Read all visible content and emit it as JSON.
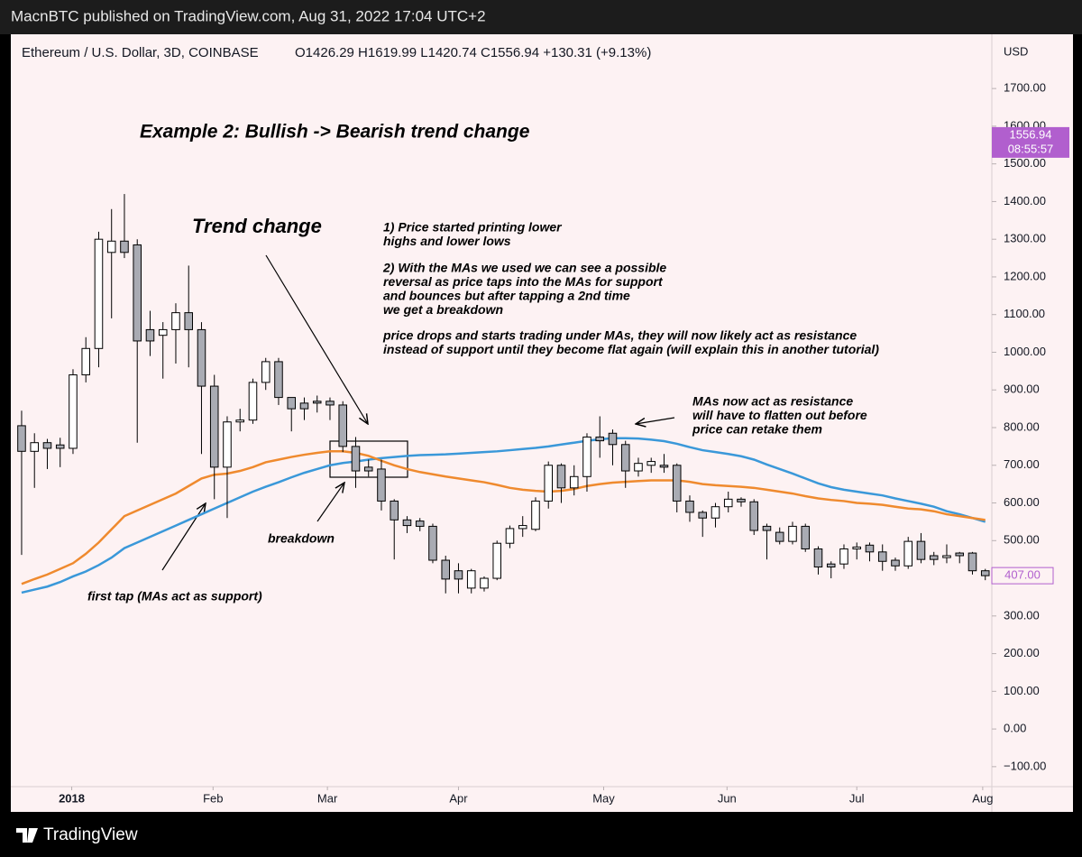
{
  "page": {
    "publisher": "MacnBTC published on TradingView.com, Aug 31, 2022 17:04 UTC+2",
    "brand": "TradingView"
  },
  "chart_data": {
    "type": "candlestick",
    "symbol": "Ethereum / U.S. Dollar, 3D, COINBASE",
    "ohlc_legend": "O1426.29 H1619.99 L1420.74 C1556.94 +130.31 (+9.13%)",
    "currency": "USD",
    "title": "Example 2: Bullish -> Bearish trend change",
    "open": [
      805,
      737,
      760,
      754,
      745,
      940,
      1010,
      1265,
      1295,
      1285,
      1060,
      1045,
      1060,
      1105,
      1060,
      910,
      695,
      815,
      820,
      920,
      975,
      880,
      865,
      870,
      870,
      860,
      750,
      695,
      690,
      605,
      555,
      552,
      538,
      448,
      420,
      374,
      374,
      400,
      493,
      532,
      530,
      605,
      700,
      640,
      670,
      775,
      785,
      755,
      685,
      700,
      700,
      700,
      605,
      575,
      560,
      590,
      610,
      603,
      538,
      522,
      498,
      538,
      478,
      438,
      438,
      478,
      488,
      470,
      448,
      433,
      498,
      460,
      455,
      467,
      467,
      420
    ],
    "high": [
      845,
      785,
      770,
      773,
      955,
      1040,
      1320,
      1380,
      1420,
      1300,
      1110,
      1080,
      1130,
      1230,
      1080,
      940,
      830,
      850,
      930,
      985,
      985,
      880,
      880,
      885,
      880,
      870,
      775,
      715,
      715,
      610,
      565,
      560,
      545,
      460,
      440,
      425,
      405,
      500,
      540,
      565,
      615,
      710,
      705,
      700,
      785,
      830,
      795,
      765,
      720,
      720,
      730,
      705,
      620,
      580,
      600,
      630,
      615,
      610,
      545,
      535,
      550,
      545,
      485,
      445,
      490,
      495,
      495,
      490,
      455,
      510,
      520,
      470,
      490,
      470,
      470,
      425
    ],
    "low": [
      462,
      640,
      690,
      695,
      730,
      920,
      960,
      1090,
      1250,
      760,
      990,
      930,
      970,
      960,
      730,
      610,
      560,
      790,
      810,
      900,
      860,
      790,
      820,
      840,
      820,
      735,
      640,
      670,
      580,
      450,
      520,
      525,
      440,
      360,
      360,
      360,
      365,
      395,
      480,
      510,
      525,
      585,
      600,
      620,
      630,
      720,
      700,
      640,
      670,
      680,
      680,
      575,
      550,
      510,
      535,
      575,
      590,
      515,
      450,
      490,
      490,
      470,
      410,
      400,
      425,
      450,
      445,
      420,
      420,
      425,
      440,
      435,
      440,
      440,
      410,
      395
    ],
    "close": [
      737,
      760,
      745,
      745,
      940,
      1010,
      1300,
      1295,
      1265,
      1030,
      1030,
      1060,
      1105,
      1060,
      910,
      695,
      815,
      820,
      920,
      975,
      880,
      850,
      850,
      865,
      860,
      750,
      685,
      685,
      605,
      555,
      540,
      538,
      448,
      398,
      398,
      420,
      400,
      493,
      532,
      540,
      605,
      700,
      640,
      670,
      775,
      765,
      755,
      685,
      705,
      710,
      695,
      605,
      575,
      560,
      590,
      610,
      603,
      527,
      527,
      498,
      538,
      478,
      430,
      430,
      478,
      483,
      470,
      445,
      433,
      498,
      450,
      450,
      460,
      460,
      420,
      407
    ],
    "up_color": "#ffffff",
    "down_color": "#a9abb3",
    "series": [
      {
        "color": "#3a98d9",
        "values": [
          362,
          370,
          378,
          390,
          405,
          418,
          435,
          455,
          480,
          495,
          510,
          525,
          540,
          555,
          570,
          585,
          600,
          615,
          630,
          643,
          655,
          668,
          680,
          690,
          700,
          706,
          710,
          715,
          719,
          722,
          725,
          727,
          728,
          729,
          731,
          733,
          735,
          737,
          740,
          743,
          746,
          750,
          755,
          760,
          765,
          769,
          772,
          772,
          771,
          768,
          764,
          757,
          748,
          740,
          735,
          730,
          724,
          715,
          702,
          690,
          678,
          665,
          652,
          642,
          635,
          630,
          625,
          620,
          612,
          605,
          598,
          590,
          578,
          570,
          560,
          550
        ]
      },
      {
        "color": "#ef8a2e",
        "values": [
          385,
          398,
          410,
          425,
          440,
          465,
          495,
          530,
          565,
          580,
          595,
          610,
          625,
          645,
          665,
          675,
          678,
          685,
          695,
          708,
          715,
          722,
          728,
          733,
          737,
          737,
          733,
          725,
          712,
          700,
          690,
          682,
          676,
          670,
          665,
          660,
          655,
          648,
          640,
          635,
          632,
          630,
          632,
          637,
          645,
          650,
          654,
          656,
          658,
          660,
          660,
          660,
          656,
          650,
          647,
          645,
          643,
          640,
          635,
          630,
          625,
          618,
          612,
          608,
          605,
          600,
          598,
          595,
          590,
          585,
          583,
          578,
          570,
          565,
          560,
          555
        ]
      }
    ],
    "xlim": [
      -0.84,
      75.51
    ],
    "xticks": [
      {
        "value": 3.9,
        "label": "2018"
      },
      {
        "value": 14.9,
        "label": "Feb"
      },
      {
        "value": 23.8,
        "label": "Mar"
      },
      {
        "value": 34,
        "label": "Apr"
      },
      {
        "value": 45.3,
        "label": "May"
      },
      {
        "value": 54.9,
        "label": "Jun"
      },
      {
        "value": 65,
        "label": "Jul"
      },
      {
        "value": 74.8,
        "label": "Aug"
      }
    ],
    "ylim": [
      -153,
      1844
    ],
    "yticks": [
      {
        "value": -100,
        "label": "−100.00"
      },
      {
        "value": 0,
        "label": "0.00"
      },
      {
        "value": 100,
        "label": "100.00"
      },
      {
        "value": 200,
        "label": "200.00"
      },
      {
        "value": 300,
        "label": "300.00"
      },
      {
        "value": 400,
        "label": "400.00"
      },
      {
        "value": 500,
        "label": "500.00"
      },
      {
        "value": 600,
        "label": "600.00"
      },
      {
        "value": 700,
        "label": "700.00"
      },
      {
        "value": 800,
        "label": "800.00"
      },
      {
        "value": 900,
        "label": "900.00"
      },
      {
        "value": 1000,
        "label": "1000.00"
      },
      {
        "value": 1100,
        "label": "1100.00"
      },
      {
        "value": 1200,
        "label": "1200.00"
      },
      {
        "value": 1300,
        "label": "1300.00"
      },
      {
        "value": 1400,
        "label": "1400.00"
      },
      {
        "value": 1500,
        "label": "1500.00"
      },
      {
        "value": 1600,
        "label": "1600.00"
      },
      {
        "value": 1700,
        "label": "1700.00"
      }
    ],
    "last_price": 1556.94,
    "countdown": "08:55:57",
    "price_marker": {
      "value": 407,
      "label": "407.00"
    },
    "annotations": {
      "trend_change": "Trend change",
      "notes": [
        [
          "1) Price started printing lower",
          "highs and lower lows"
        ],
        [
          "2) With the MAs we used we can see a possible",
          "reversal as price taps into the MAs for support",
          "and bounces but after tapping a 2nd time",
          "we get a breakdown"
        ],
        [
          "price drops and starts trading under MAs, they will now likely act as resistance",
          "instead of support until they become flat again (will explain this in another tutorial)"
        ]
      ],
      "resistance": [
        "MAs now act as resistance",
        "will have to flatten out before",
        "price can retake them"
      ],
      "breakdown": "breakdown",
      "first_tap": "first tap (MAs act as support)"
    }
  }
}
